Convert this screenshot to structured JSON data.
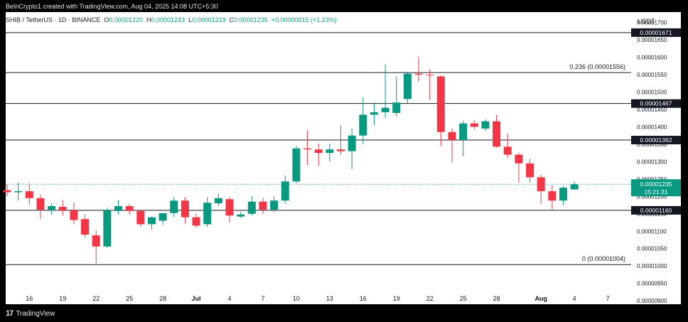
{
  "header": {
    "created_by": "BeInCrypto1 created with TradingView.com, Aug 04, 2025 14:08 UTC+5:30",
    "symbol": "SHIB / TetherUS · 1D · BINANCE",
    "open_key": "O",
    "open": "0.00001220",
    "high_key": "H",
    "high": "0.00001243",
    "low_key": "L",
    "low": "0.00001219",
    "close_key": "C",
    "close": "0.00001235",
    "change": "+0.00000015 (+1.23%)"
  },
  "branding": {
    "label": "TradingView",
    "logo_text": "17"
  },
  "colors": {
    "up": "#089981",
    "down": "#f23645",
    "background": "#ffffff",
    "frame": "#000000",
    "level_line": "#131722",
    "price_line": "#089981"
  },
  "chart_data": {
    "type": "candlestick",
    "symbol": "SHIB / TetherUS",
    "timeframe": "1D",
    "exchange": "BINANCE",
    "y_axis": {
      "unit": "USDT",
      "range": [
        8.9e-06,
        1.73e-05
      ],
      "ticks": [
        "0.00000900",
        "0.00000950",
        "0.00001000",
        "0.00001050",
        "0.00001100",
        "0.00001150",
        "0.00001200",
        "0.00001250",
        "0.00001300",
        "0.00001350",
        "0.00001400",
        "0.00001450",
        "0.00001500",
        "0.00001550",
        "0.00001600",
        "0.00001650",
        "0.00001700"
      ],
      "position": "right"
    },
    "x_axis": {
      "ticks": [
        {
          "label": "16",
          "date": "2025-06-16"
        },
        {
          "label": "19",
          "date": "2025-06-19"
        },
        {
          "label": "22",
          "date": "2025-06-22"
        },
        {
          "label": "25",
          "date": "2025-06-25"
        },
        {
          "label": "28",
          "date": "2025-06-28"
        },
        {
          "label": "Jul",
          "date": "2025-07-01"
        },
        {
          "label": "4",
          "date": "2025-07-04"
        },
        {
          "label": "7",
          "date": "2025-07-07"
        },
        {
          "label": "10",
          "date": "2025-07-10"
        },
        {
          "label": "13",
          "date": "2025-07-13"
        },
        {
          "label": "16",
          "date": "2025-07-16"
        },
        {
          "label": "19",
          "date": "2025-07-19"
        },
        {
          "label": "22",
          "date": "2025-07-22"
        },
        {
          "label": "25",
          "date": "2025-07-25"
        },
        {
          "label": "28",
          "date": "2025-07-28"
        },
        {
          "label": "Aug",
          "date": "2025-08-01"
        },
        {
          "label": "4",
          "date": "2025-08-04"
        },
        {
          "label": "7",
          "date": "2025-08-07"
        }
      ]
    },
    "candles": [
      {
        "date": "2025-06-14",
        "o": 1.218e-05,
        "h": 1.235e-05,
        "l": 1.2e-05,
        "c": 1.212e-05
      },
      {
        "date": "2025-06-15",
        "o": 1.212e-05,
        "h": 1.24e-05,
        "l": 1.188e-05,
        "c": 1.215e-05
      },
      {
        "date": "2025-06-16",
        "o": 1.215e-05,
        "h": 1.238e-05,
        "l": 1.175e-05,
        "c": 1.195e-05
      },
      {
        "date": "2025-06-17",
        "o": 1.195e-05,
        "h": 1.205e-05,
        "l": 1.135e-05,
        "c": 1.162e-05
      },
      {
        "date": "2025-06-18",
        "o": 1.162e-05,
        "h": 1.18e-05,
        "l": 1.148e-05,
        "c": 1.172e-05
      },
      {
        "date": "2025-06-19",
        "o": 1.17e-05,
        "h": 1.19e-05,
        "l": 1.145e-05,
        "c": 1.16e-05
      },
      {
        "date": "2025-06-20",
        "o": 1.16e-05,
        "h": 1.182e-05,
        "l": 1.12e-05,
        "c": 1.132e-05
      },
      {
        "date": "2025-06-21",
        "o": 1.135e-05,
        "h": 1.148e-05,
        "l": 1.082e-05,
        "c": 1.09e-05
      },
      {
        "date": "2025-06-22",
        "o": 1.088e-05,
        "h": 1.102e-05,
        "l": 1.008e-05,
        "c": 1.056e-05
      },
      {
        "date": "2025-06-23",
        "o": 1.056e-05,
        "h": 1.168e-05,
        "l": 1.052e-05,
        "c": 1.16e-05
      },
      {
        "date": "2025-06-24",
        "o": 1.158e-05,
        "h": 1.19e-05,
        "l": 1.148e-05,
        "c": 1.172e-05
      },
      {
        "date": "2025-06-25",
        "o": 1.172e-05,
        "h": 1.178e-05,
        "l": 1.148e-05,
        "c": 1.158e-05
      },
      {
        "date": "2025-06-26",
        "o": 1.158e-05,
        "h": 1.162e-05,
        "l": 1.112e-05,
        "c": 1.12e-05
      },
      {
        "date": "2025-06-27",
        "o": 1.12e-05,
        "h": 1.142e-05,
        "l": 1.105e-05,
        "c": 1.14e-05
      },
      {
        "date": "2025-06-28",
        "o": 1.13e-05,
        "h": 1.152e-05,
        "l": 1.118e-05,
        "c": 1.152e-05
      },
      {
        "date": "2025-06-29",
        "o": 1.152e-05,
        "h": 1.198e-05,
        "l": 1.14e-05,
        "c": 1.188e-05
      },
      {
        "date": "2025-06-30",
        "o": 1.188e-05,
        "h": 1.198e-05,
        "l": 1.122e-05,
        "c": 1.14e-05
      },
      {
        "date": "2025-07-01",
        "o": 1.14e-05,
        "h": 1.15e-05,
        "l": 1.11e-05,
        "c": 1.116e-05
      },
      {
        "date": "2025-07-02",
        "o": 1.12e-05,
        "h": 1.198e-05,
        "l": 1.112e-05,
        "c": 1.182e-05
      },
      {
        "date": "2025-07-03",
        "o": 1.18e-05,
        "h": 1.208e-05,
        "l": 1.172e-05,
        "c": 1.195e-05
      },
      {
        "date": "2025-07-04",
        "o": 1.192e-05,
        "h": 1.198e-05,
        "l": 1.125e-05,
        "c": 1.145e-05
      },
      {
        "date": "2025-07-05",
        "o": 1.142e-05,
        "h": 1.155e-05,
        "l": 1.138e-05,
        "c": 1.148e-05
      },
      {
        "date": "2025-07-06",
        "o": 1.15e-05,
        "h": 1.2e-05,
        "l": 1.145e-05,
        "c": 1.185e-05
      },
      {
        "date": "2025-07-07",
        "o": 1.185e-05,
        "h": 1.195e-05,
        "l": 1.15e-05,
        "c": 1.162e-05
      },
      {
        "date": "2025-07-08",
        "o": 1.162e-05,
        "h": 1.2e-05,
        "l": 1.155e-05,
        "c": 1.188e-05
      },
      {
        "date": "2025-07-09",
        "o": 1.188e-05,
        "h": 1.26e-05,
        "l": 1.18e-05,
        "c": 1.243e-05
      },
      {
        "date": "2025-07-10",
        "o": 1.243e-05,
        "h": 1.345e-05,
        "l": 1.238e-05,
        "c": 1.338e-05
      },
      {
        "date": "2025-07-11",
        "o": 1.338e-05,
        "h": 1.39e-05,
        "l": 1.29e-05,
        "c": 1.335e-05
      },
      {
        "date": "2025-07-12",
        "o": 1.335e-05,
        "h": 1.352e-05,
        "l": 1.288e-05,
        "c": 1.325e-05
      },
      {
        "date": "2025-07-13",
        "o": 1.325e-05,
        "h": 1.352e-05,
        "l": 1.3e-05,
        "c": 1.335e-05
      },
      {
        "date": "2025-07-14",
        "o": 1.335e-05,
        "h": 1.405e-05,
        "l": 1.32e-05,
        "c": 1.33e-05
      },
      {
        "date": "2025-07-15",
        "o": 1.33e-05,
        "h": 1.395e-05,
        "l": 1.278e-05,
        "c": 1.375e-05
      },
      {
        "date": "2025-07-16",
        "o": 1.375e-05,
        "h": 1.485e-05,
        "l": 1.35e-05,
        "c": 1.435e-05
      },
      {
        "date": "2025-07-17",
        "o": 1.435e-05,
        "h": 1.47e-05,
        "l": 1.405e-05,
        "c": 1.442e-05
      },
      {
        "date": "2025-07-18",
        "o": 1.442e-05,
        "h": 1.58e-05,
        "l": 1.425e-05,
        "c": 1.455e-05
      },
      {
        "date": "2025-07-19",
        "o": 1.44e-05,
        "h": 1.545e-05,
        "l": 1.43e-05,
        "c": 1.47e-05
      },
      {
        "date": "2025-07-20",
        "o": 1.48e-05,
        "h": 1.558e-05,
        "l": 1.468e-05,
        "c": 1.553e-05
      },
      {
        "date": "2025-07-21",
        "o": 1.553e-05,
        "h": 1.602e-05,
        "l": 1.53e-05,
        "c": 1.55e-05
      },
      {
        "date": "2025-07-22",
        "o": 1.55e-05,
        "h": 1.565e-05,
        "l": 1.478e-05,
        "c": 1.548e-05
      },
      {
        "date": "2025-07-23",
        "o": 1.545e-05,
        "h": 1.548e-05,
        "l": 1.345e-05,
        "c": 1.385e-05
      },
      {
        "date": "2025-07-24",
        "o": 1.385e-05,
        "h": 1.395e-05,
        "l": 1.298e-05,
        "c": 1.362e-05
      },
      {
        "date": "2025-07-25",
        "o": 1.362e-05,
        "h": 1.418e-05,
        "l": 1.315e-05,
        "c": 1.41e-05
      },
      {
        "date": "2025-07-26",
        "o": 1.41e-05,
        "h": 1.42e-05,
        "l": 1.392e-05,
        "c": 1.4e-05
      },
      {
        "date": "2025-07-27",
        "o": 1.395e-05,
        "h": 1.422e-05,
        "l": 1.388e-05,
        "c": 1.416e-05
      },
      {
        "date": "2025-07-28",
        "o": 1.416e-05,
        "h": 1.435e-05,
        "l": 1.34e-05,
        "c": 1.343e-05
      },
      {
        "date": "2025-07-29",
        "o": 1.343e-05,
        "h": 1.38e-05,
        "l": 1.31e-05,
        "c": 1.32e-05
      },
      {
        "date": "2025-07-30",
        "o": 1.32e-05,
        "h": 1.325e-05,
        "l": 1.24e-05,
        "c": 1.295e-05
      },
      {
        "date": "2025-07-31",
        "o": 1.295e-05,
        "h": 1.308e-05,
        "l": 1.24e-05,
        "c": 1.255e-05
      },
      {
        "date": "2025-08-01",
        "o": 1.255e-05,
        "h": 1.262e-05,
        "l": 1.178e-05,
        "c": 1.215e-05
      },
      {
        "date": "2025-08-02",
        "o": 1.215e-05,
        "h": 1.232e-05,
        "l": 1.162e-05,
        "c": 1.188e-05
      },
      {
        "date": "2025-08-03",
        "o": 1.188e-05,
        "h": 1.23e-05,
        "l": 1.175e-05,
        "c": 1.225e-05
      },
      {
        "date": "2025-08-04",
        "o": 1.22e-05,
        "h": 1.243e-05,
        "l": 1.219e-05,
        "c": 1.235e-05
      }
    ],
    "levels": [
      {
        "price": 1.671e-05,
        "label": "0.00001671",
        "note": ""
      },
      {
        "price": 1.556e-05,
        "label": "",
        "note": "0.236 (0.00001556)"
      },
      {
        "price": 1.467e-05,
        "label": "0.00001467",
        "note": ""
      },
      {
        "price": 1.362e-05,
        "label": "0.00001362",
        "note": ""
      },
      {
        "price": 1.16e-05,
        "label": "0.00001160",
        "note": ""
      },
      {
        "price": 1.004e-05,
        "label": "",
        "note": "0 (0.00001004)"
      }
    ],
    "last_price": {
      "price": 1.235e-05,
      "label": "0.00001235",
      "countdown": "15:21:31"
    }
  }
}
